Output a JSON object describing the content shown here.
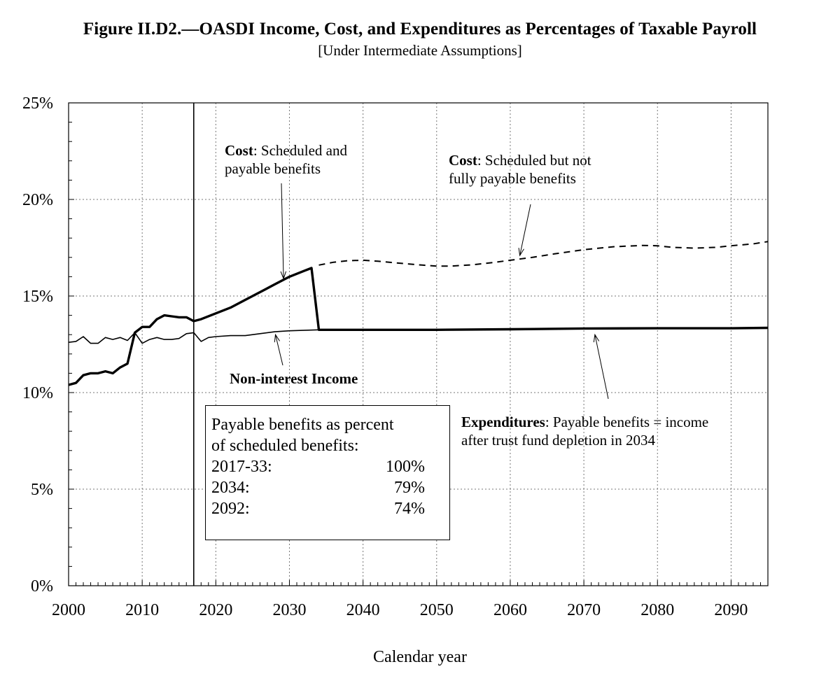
{
  "title": "Figure II.D2.—OASDI Income, Cost, and Expenditures as Percentages of Taxable Payroll",
  "subtitle": "[Under Intermediate Assumptions]",
  "annotations": {
    "cost_sched_payable_bold": "Cost",
    "cost_sched_payable_text": ": Scheduled and",
    "cost_sched_payable_line2": "payable benefits",
    "cost_not_payable_bold": "Cost",
    "cost_not_payable_text": ": Scheduled but not",
    "cost_not_payable_line2": "fully payable benefits",
    "noninterest_income": "Non-interest Income",
    "expenditures_bold": "Expenditures",
    "expenditures_text": ": Payable benefits = income",
    "expenditures_line2": "after trust fund depletion in 2034"
  },
  "infobox": {
    "heading_line1": "Payable benefits as percent",
    "heading_line2": "of scheduled benefits:",
    "rows": [
      {
        "period": "2017-33:",
        "value": "100%"
      },
      {
        "period": "2034:",
        "value": "79%"
      },
      {
        "period": "2092:",
        "value": "74%"
      }
    ]
  },
  "chart_data": {
    "type": "line",
    "xlabel": "Calendar year",
    "ylabel": "",
    "xlim": [
      2000,
      2095
    ],
    "ylim": [
      0,
      25
    ],
    "x_ticks": [
      2000,
      2010,
      2020,
      2030,
      2040,
      2050,
      2060,
      2070,
      2080,
      2090
    ],
    "y_ticks": [
      "0%",
      "5%",
      "10%",
      "15%",
      "20%",
      "25%"
    ],
    "grid": true,
    "vertical_marker_year": 2017,
    "series": [
      {
        "style": "solid-thick",
        "x": [
          2000,
          2001,
          2002,
          2003,
          2004,
          2005,
          2006,
          2007,
          2008,
          2009,
          2010,
          2011,
          2012,
          2013,
          2014,
          2015,
          2016,
          2017,
          2018,
          2020,
          2022,
          2024,
          2026,
          2028,
          2030,
          2032,
          2033,
          2034,
          2040,
          2050,
          2060,
          2070,
          2080,
          2090,
          2095
        ],
        "y": [
          10.4,
          10.5,
          10.9,
          11.0,
          11.0,
          11.1,
          11.0,
          11.3,
          11.5,
          13.1,
          13.4,
          13.4,
          13.8,
          14.0,
          13.95,
          13.9,
          13.9,
          13.7,
          13.8,
          14.1,
          14.4,
          14.8,
          15.2,
          15.6,
          16.0,
          16.3,
          16.45,
          13.25,
          13.25,
          13.25,
          13.28,
          13.32,
          13.33,
          13.33,
          13.35
        ]
      },
      {
        "style": "dashed",
        "x": [
          2034,
          2036,
          2038,
          2040,
          2042,
          2045,
          2048,
          2050,
          2052,
          2055,
          2058,
          2060,
          2063,
          2066,
          2070,
          2074,
          2078,
          2080,
          2082,
          2085,
          2088,
          2090,
          2093,
          2095
        ],
        "y": [
          16.6,
          16.75,
          16.83,
          16.85,
          16.8,
          16.7,
          16.6,
          16.55,
          16.55,
          16.62,
          16.75,
          16.85,
          17.0,
          17.18,
          17.4,
          17.55,
          17.62,
          17.6,
          17.52,
          17.48,
          17.52,
          17.6,
          17.7,
          17.82
        ]
      },
      {
        "style": "solid-thin",
        "x": [
          2000,
          2001,
          2002,
          2003,
          2004,
          2005,
          2006,
          2007,
          2008,
          2009,
          2010,
          2011,
          2012,
          2013,
          2014,
          2015,
          2016,
          2017,
          2018,
          2019,
          2020,
          2022,
          2024,
          2026,
          2028,
          2030,
          2034,
          2050,
          2070,
          2095
        ],
        "y": [
          12.6,
          12.65,
          12.9,
          12.55,
          12.55,
          12.85,
          12.75,
          12.85,
          12.7,
          13.1,
          12.55,
          12.75,
          12.85,
          12.75,
          12.75,
          12.8,
          13.05,
          13.1,
          12.65,
          12.85,
          12.9,
          12.95,
          12.95,
          13.05,
          13.15,
          13.2,
          13.25,
          13.25,
          13.3,
          13.35
        ]
      }
    ]
  }
}
